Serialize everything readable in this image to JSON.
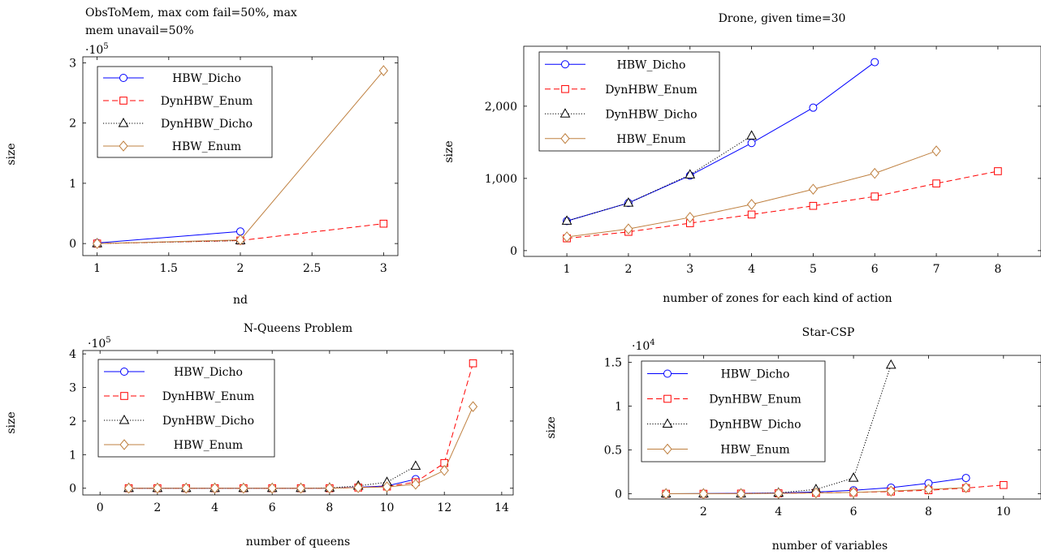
{
  "chart_data": [
    {
      "type": "line",
      "title": "ObsToMem, max com fail=50%, max mem unavail=50%",
      "title_lines": [
        "ObsToMem, max com fail=50%, max",
        "mem unavail=50%"
      ],
      "xlabel": "nd",
      "ylabel": "size",
      "y_multiplier": "·10^5",
      "y_multiplier_base": "·10",
      "y_multiplier_exp": "5",
      "xlim": [
        0.9,
        3.1
      ],
      "ylim": [
        -0.2,
        3.1
      ],
      "xticks": [
        1,
        1.5,
        2,
        2.5,
        3
      ],
      "xtick_labels": [
        "1",
        "1.5",
        "2",
        "2.5",
        "3"
      ],
      "yticks": [
        0,
        1,
        2,
        3
      ],
      "ytick_labels": [
        "0",
        "1",
        "2",
        "3"
      ],
      "legend_position": "top-left",
      "series": [
        {
          "name": "HBW_Dicho",
          "label": "HBW_Dicho",
          "style": "blue-circle-solid",
          "color": "#0000ff",
          "x": [
            1,
            2
          ],
          "y": [
            0.01,
            0.2
          ]
        },
        {
          "name": "DynHBW_Enum",
          "label": "DynHBW_Enum",
          "style": "red-square-dashed",
          "color": "#ff0000",
          "x": [
            1,
            2,
            3
          ],
          "y": [
            0.0,
            0.05,
            0.33
          ]
        },
        {
          "name": "DynHBW_Dicho",
          "label": "DynHBW_Dicho",
          "style": "black-triangle-dotted",
          "color": "#000000",
          "x": [
            1,
            2
          ],
          "y": [
            0.0,
            0.05
          ]
        },
        {
          "name": "HBW_Enum",
          "label": "HBW_Enum",
          "style": "brown-diamond-solid",
          "color": "#bf8040",
          "x": [
            1,
            2,
            3
          ],
          "y": [
            0.0,
            0.06,
            2.87
          ]
        }
      ]
    },
    {
      "type": "line",
      "title": "Drone, given time=30",
      "title_lines": [
        "Drone, given time=30"
      ],
      "xlabel": "number of zones for each kind of action",
      "ylabel": "size",
      "y_multiplier": "",
      "y_multiplier_base": "",
      "y_multiplier_exp": "",
      "xlim": [
        0.3,
        8.7
      ],
      "ylim": [
        -80,
        2830
      ],
      "xticks": [
        1,
        2,
        3,
        4,
        5,
        6,
        7,
        8
      ],
      "xtick_labels": [
        "1",
        "2",
        "3",
        "4",
        "5",
        "6",
        "7",
        "8"
      ],
      "yticks": [
        0,
        1000,
        2000
      ],
      "ytick_labels": [
        "0",
        "1,000",
        "2,000"
      ],
      "legend_position": "top-left",
      "series": [
        {
          "name": "HBW_Dicho",
          "label": "HBW_Dicho",
          "style": "blue-circle-solid",
          "color": "#0000ff",
          "x": [
            1,
            2,
            3,
            4,
            5,
            6
          ],
          "y": [
            410,
            660,
            1040,
            1490,
            1980,
            2610
          ]
        },
        {
          "name": "DynHBW_Enum",
          "label": "DynHBW_Enum",
          "style": "red-square-dashed",
          "color": "#ff0000",
          "x": [
            1,
            2,
            3,
            4,
            5,
            6,
            7,
            8
          ],
          "y": [
            170,
            260,
            380,
            500,
            620,
            750,
            930,
            1100
          ]
        },
        {
          "name": "DynHBW_Dicho",
          "label": "DynHBW_Dicho",
          "style": "black-triangle-dotted",
          "color": "#000000",
          "x": [
            1,
            2,
            3,
            4
          ],
          "y": [
            410,
            660,
            1050,
            1590
          ]
        },
        {
          "name": "HBW_Enum",
          "label": "HBW_Enum",
          "style": "brown-diamond-solid",
          "color": "#bf8040",
          "x": [
            1,
            2,
            3,
            4,
            5,
            6,
            7
          ],
          "y": [
            190,
            300,
            460,
            640,
            850,
            1070,
            1380
          ]
        }
      ]
    },
    {
      "type": "line",
      "title": "N-Queens Problem",
      "title_lines": [
        "N-Queens Problem"
      ],
      "xlabel": "number of queens",
      "ylabel": "size",
      "y_multiplier": "·10^5",
      "y_multiplier_base": "·10",
      "y_multiplier_exp": "5",
      "xlim": [
        -0.6,
        14.4
      ],
      "ylim": [
        -0.2,
        4.1
      ],
      "xticks": [
        0,
        2,
        4,
        6,
        8,
        10,
        12,
        14
      ],
      "xtick_labels": [
        "0",
        "2",
        "4",
        "6",
        "8",
        "10",
        "12",
        "14"
      ],
      "yticks": [
        0,
        1,
        2,
        3,
        4
      ],
      "ytick_labels": [
        "0",
        "1",
        "2",
        "3",
        "4"
      ],
      "legend_position": "top-left",
      "series": [
        {
          "name": "HBW_Dicho",
          "label": "HBW_Dicho",
          "style": "blue-circle-solid",
          "color": "#0000ff",
          "x": [
            1,
            2,
            3,
            4,
            5,
            6,
            7,
            8,
            9,
            10,
            11
          ],
          "y": [
            0,
            0,
            0,
            0,
            0,
            0,
            0,
            0,
            0.03,
            0.07,
            0.27
          ]
        },
        {
          "name": "DynHBW_Enum",
          "label": "DynHBW_Enum",
          "style": "red-square-dashed",
          "color": "#ff0000",
          "x": [
            1,
            2,
            3,
            4,
            5,
            6,
            7,
            8,
            9,
            10,
            11,
            12,
            13
          ],
          "y": [
            0,
            0,
            0,
            0,
            0,
            0,
            0,
            0,
            0.02,
            0.05,
            0.18,
            0.75,
            3.72
          ]
        },
        {
          "name": "DynHBW_Dicho",
          "label": "DynHBW_Dicho",
          "style": "black-triangle-dotted",
          "color": "#000000",
          "x": [
            1,
            2,
            3,
            4,
            5,
            6,
            7,
            8,
            9,
            10,
            11
          ],
          "y": [
            0,
            0,
            0,
            0,
            0,
            0,
            0,
            0.01,
            0.07,
            0.18,
            0.66
          ]
        },
        {
          "name": "HBW_Enum",
          "label": "HBW_Enum",
          "style": "brown-diamond-solid",
          "color": "#bf8040",
          "x": [
            1,
            2,
            3,
            4,
            5,
            6,
            7,
            8,
            9,
            10,
            11,
            12,
            13
          ],
          "y": [
            0,
            0,
            0,
            0,
            0,
            0,
            0,
            0,
            0.02,
            0.04,
            0.12,
            0.53,
            2.43
          ]
        }
      ]
    },
    {
      "type": "line",
      "title": "Star-CSP",
      "title_lines": [
        "Star-CSP"
      ],
      "xlabel": "number of variables",
      "ylabel": "size",
      "y_multiplier": "·10^4",
      "y_multiplier_base": "·10",
      "y_multiplier_exp": "4",
      "xlim": [
        0.0,
        11.0
      ],
      "ylim": [
        -0.06,
        1.58
      ],
      "xticks": [
        2,
        4,
        6,
        8,
        10
      ],
      "xtick_labels": [
        "2",
        "4",
        "6",
        "8",
        "10"
      ],
      "yticks": [
        0,
        0.5,
        1,
        1.5
      ],
      "ytick_labels": [
        "0",
        "0.5",
        "1",
        "1.5"
      ],
      "legend_position": "top-left",
      "series": [
        {
          "name": "HBW_Dicho",
          "label": "HBW_Dicho",
          "style": "blue-circle-solid",
          "color": "#0000ff",
          "x": [
            1,
            2,
            3,
            4,
            5,
            6,
            7,
            8,
            9
          ],
          "y": [
            0,
            0.002,
            0.005,
            0.01,
            0.02,
            0.04,
            0.07,
            0.12,
            0.18
          ]
        },
        {
          "name": "DynHBW_Enum",
          "label": "DynHBW_Enum",
          "style": "red-square-dashed",
          "color": "#ff0000",
          "x": [
            1,
            2,
            3,
            4,
            5,
            6,
            7,
            8,
            9,
            10
          ],
          "y": [
            0,
            0,
            0.002,
            0.005,
            0.01,
            0.015,
            0.025,
            0.04,
            0.065,
            0.1
          ]
        },
        {
          "name": "DynHBW_Dicho",
          "label": "DynHBW_Dicho",
          "style": "black-triangle-dotted",
          "color": "#000000",
          "x": [
            1,
            2,
            3,
            4,
            5,
            6,
            7
          ],
          "y": [
            0,
            0,
            0,
            0.01,
            0.05,
            0.18,
            1.47
          ]
        },
        {
          "name": "HBW_Enum",
          "label": "HBW_Enum",
          "style": "brown-diamond-solid",
          "color": "#bf8040",
          "x": [
            1,
            2,
            3,
            4,
            5,
            6,
            7,
            8,
            9
          ],
          "y": [
            0,
            0,
            0,
            0.005,
            0.01,
            0.015,
            0.03,
            0.05,
            0.07
          ]
        }
      ]
    }
  ]
}
